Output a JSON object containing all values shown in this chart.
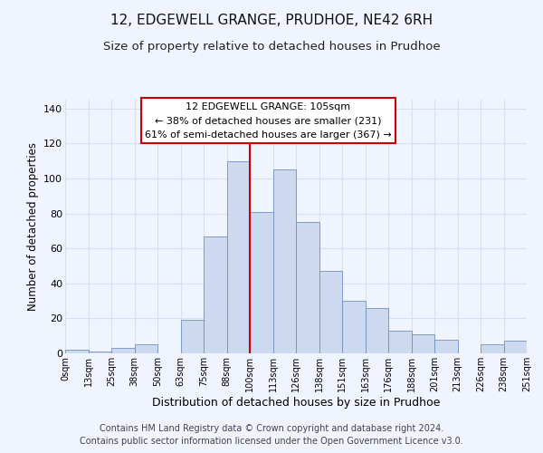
{
  "title": "12, EDGEWELL GRANGE, PRUDHOE, NE42 6RH",
  "subtitle": "Size of property relative to detached houses in Prudhoe",
  "xlabel": "Distribution of detached houses by size in Prudhoe",
  "ylabel": "Number of detached properties",
  "bar_color": "#ccd9ee",
  "bar_edge_color": "#7090c0",
  "bin_labels": [
    "0sqm",
    "13sqm",
    "25sqm",
    "38sqm",
    "50sqm",
    "63sqm",
    "75sqm",
    "88sqm",
    "100sqm",
    "113sqm",
    "126sqm",
    "138sqm",
    "151sqm",
    "163sqm",
    "176sqm",
    "188sqm",
    "201sqm",
    "213sqm",
    "226sqm",
    "238sqm",
    "251sqm"
  ],
  "bar_values": [
    2,
    1,
    3,
    5,
    0,
    19,
    67,
    110,
    81,
    105,
    75,
    47,
    30,
    26,
    13,
    11,
    8,
    0,
    5,
    7
  ],
  "ylim": [
    0,
    145
  ],
  "yticks": [
    0,
    20,
    40,
    60,
    80,
    100,
    120,
    140
  ],
  "vline_x": 8.0,
  "vline_color": "#cc0000",
  "annotation_title": "12 EDGEWELL GRANGE: 105sqm",
  "annotation_line1": "← 38% of detached houses are smaller (231)",
  "annotation_line2": "61% of semi-detached houses are larger (367) →",
  "annotation_box_color": "#ffffff",
  "annotation_box_edge_color": "#cc0000",
  "footer1": "Contains HM Land Registry data © Crown copyright and database right 2024.",
  "footer2": "Contains public sector information licensed under the Open Government Licence v3.0.",
  "background_color": "#f0f4ff",
  "grid_color": "#d8dff0",
  "title_fontsize": 11,
  "subtitle_fontsize": 9.5,
  "xlabel_fontsize": 9,
  "ylabel_fontsize": 8.5,
  "footer_fontsize": 7
}
